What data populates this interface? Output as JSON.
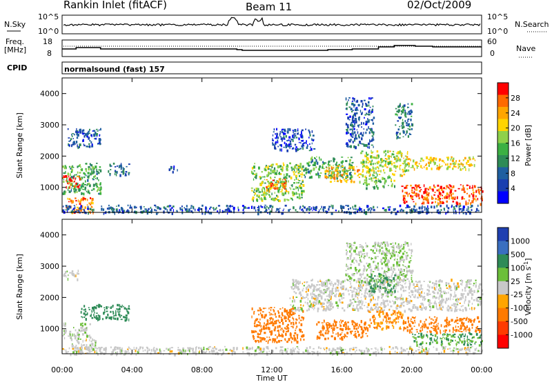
{
  "header": {
    "station": "Rankin Inlet (fitACF)",
    "beam": "Beam 11",
    "date": "02/Oct/2009"
  },
  "noise_panel": {
    "left_label": "N.Sky",
    "left_ticks": [
      "10^5",
      "10^0"
    ],
    "right_label": "N.Search",
    "right_ticks": [
      "10^5",
      "10^0"
    ]
  },
  "freq_panel": {
    "left_label_1": "Freq.",
    "left_label_2": "[MHz]",
    "left_ticks": [
      "18",
      "8"
    ],
    "right_label": "Nave",
    "right_ticks": [
      "60",
      "0"
    ]
  },
  "cpid": {
    "label": "CPID",
    "text": "normalsound (fast) 157"
  },
  "power_colorbar": {
    "label": "Power [dB]",
    "ticks": [
      "28",
      "24",
      "20",
      "16",
      "12",
      "8",
      "4"
    ],
    "colors": [
      "#ff0000",
      "#ff6a00",
      "#ffa500",
      "#ffd400",
      "#8ed14a",
      "#3cb043",
      "#2e8b57",
      "#1f5fa0",
      "#1a3fb0",
      "#0000ff"
    ]
  },
  "velocity_colorbar": {
    "label": "Velocity [m s",
    "label_sup": "-1",
    "label_end": "]",
    "ticks": [
      "1000",
      "500",
      "100",
      "25",
      "-25",
      "-100",
      "-500",
      "-1000"
    ],
    "colors": [
      "#1f3fb0",
      "#3a6fc0",
      "#2e8b57",
      "#6cbf3a",
      "#c8c8c8",
      "#ffa500",
      "#ff7a00",
      "#ff3b00",
      "#ff0000"
    ]
  },
  "chart_data": [
    {
      "type": "heatmap",
      "name": "Power",
      "ylabel": "Slant Range [km]",
      "y_ticks": [
        "1000",
        "2000",
        "3000",
        "4000"
      ],
      "ylim": [
        200,
        4500
      ],
      "xlim": [
        "00:00",
        "24:00"
      ],
      "x_ticks": [
        "00:00",
        "04:00",
        "08:00",
        "12:00",
        "16:00",
        "20:00",
        "00:00"
      ],
      "blobs": [
        {
          "t": [
            0.0,
            2.2
          ],
          "r": [
            800,
            1800
          ],
          "v": 14
        },
        {
          "t": [
            0.2,
            1.8
          ],
          "r": [
            200,
            700
          ],
          "v": 24
        },
        {
          "t": [
            0.0,
            1.0
          ],
          "r": [
            1000,
            1400
          ],
          "v": 26
        },
        {
          "t": [
            0.3,
            2.2
          ],
          "r": [
            2300,
            2900
          ],
          "v": 8
        },
        {
          "t": [
            2.6,
            3.8
          ],
          "r": [
            1400,
            1800
          ],
          "v": 10
        },
        {
          "t": [
            6.1,
            6.6
          ],
          "r": [
            1500,
            1700
          ],
          "v": 8
        },
        {
          "t": [
            10.8,
            13.8
          ],
          "r": [
            600,
            1800
          ],
          "v": 16
        },
        {
          "t": [
            11.6,
            12.8
          ],
          "r": [
            900,
            1300
          ],
          "v": 24
        },
        {
          "t": [
            12.0,
            14.4
          ],
          "r": [
            2200,
            2900
          ],
          "v": 7
        },
        {
          "t": [
            13.8,
            16.6
          ],
          "r": [
            1300,
            2000
          ],
          "v": 14
        },
        {
          "t": [
            15.0,
            17.0
          ],
          "r": [
            1200,
            1700
          ],
          "v": 22
        },
        {
          "t": [
            16.2,
            17.8
          ],
          "r": [
            2300,
            3900
          ],
          "v": 8
        },
        {
          "t": [
            17.0,
            19.8
          ],
          "r": [
            1400,
            2200
          ],
          "v": 18
        },
        {
          "t": [
            19.4,
            24.0
          ],
          "r": [
            500,
            1100
          ],
          "v": 26
        },
        {
          "t": [
            19.5,
            23.6
          ],
          "r": [
            1600,
            2000
          ],
          "v": 20
        },
        {
          "t": [
            19.0,
            20.0
          ],
          "r": [
            2600,
            3700
          ],
          "v": 10
        },
        {
          "t": [
            17.2,
            19.0
          ],
          "r": [
            1000,
            1400
          ],
          "v": 16
        },
        {
          "t": [
            0.0,
            24.0
          ],
          "r": [
            200,
            450
          ],
          "v": 8
        }
      ]
    },
    {
      "type": "heatmap",
      "name": "Velocity",
      "ylabel": "Slant Range [km]",
      "y_ticks": [
        "1000",
        "2000",
        "3000",
        "4000"
      ],
      "ylim": [
        200,
        4500
      ],
      "xlim": [
        "00:00",
        "24:00"
      ],
      "x_ticks": [
        "00:00",
        "04:00",
        "08:00",
        "12:00",
        "16:00",
        "20:00",
        "00:00"
      ],
      "xlabel": "Time UT",
      "blobs": [
        {
          "t": [
            0.0,
            1.6
          ],
          "r": [
            700,
            1200
          ],
          "v": 10
        },
        {
          "t": [
            0.5,
            2.0
          ],
          "r": [
            300,
            700
          ],
          "v": 0
        },
        {
          "t": [
            0.0,
            0.9
          ],
          "r": [
            2600,
            2900
          ],
          "v": 0
        },
        {
          "t": [
            1.0,
            3.8
          ],
          "r": [
            1300,
            1800
          ],
          "v": 150
        },
        {
          "t": [
            10.8,
            13.8
          ],
          "r": [
            600,
            1700
          ],
          "v": -300
        },
        {
          "t": [
            13.0,
            24.0
          ],
          "r": [
            1600,
            2600
          ],
          "v": 0
        },
        {
          "t": [
            14.5,
            17.5
          ],
          "r": [
            700,
            1300
          ],
          "v": -300
        },
        {
          "t": [
            17.5,
            19.5
          ],
          "r": [
            1000,
            1600
          ],
          "v": -100
        },
        {
          "t": [
            19.5,
            24.0
          ],
          "r": [
            900,
            1400
          ],
          "v": -200
        },
        {
          "t": [
            16.2,
            20.0
          ],
          "r": [
            2500,
            3800
          ],
          "v": 20
        },
        {
          "t": [
            17.5,
            19.0
          ],
          "r": [
            2200,
            2800
          ],
          "v": 80
        },
        {
          "t": [
            20.0,
            24.0
          ],
          "r": [
            500,
            900
          ],
          "v": 60
        },
        {
          "t": [
            0.0,
            24.0
          ],
          "r": [
            200,
            450
          ],
          "v": 0
        }
      ]
    }
  ]
}
